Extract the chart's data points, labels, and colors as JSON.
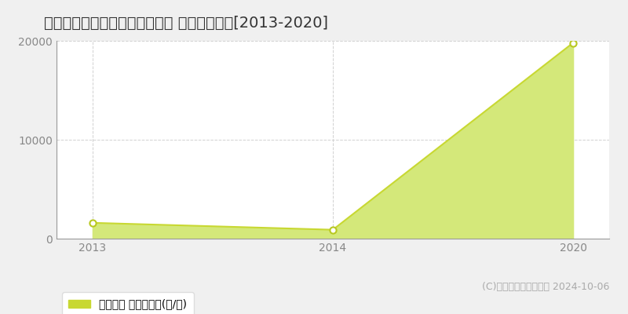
{
  "title": "河東郡士幌町ワッカクンネップ 林地価格推移[2013-2020]",
  "x_positions": [
    0,
    1,
    2
  ],
  "x_labels": [
    "2013",
    "2014",
    "2020"
  ],
  "values": [
    1600,
    900,
    19800
  ],
  "line_color": "#c8d832",
  "fill_color": "#d4e87a",
  "marker_facecolor": "#ffffff",
  "marker_edgecolor": "#b8c820",
  "ylim": [
    0,
    20000
  ],
  "xlim": [
    -0.15,
    2.15
  ],
  "yticks": [
    0,
    10000,
    20000
  ],
  "grid_color": "#cccccc",
  "bg_color": "#f0f0f0",
  "plot_bg_color": "#ffffff",
  "legend_label": "林地価格 平均坪単価(円/坪)",
  "copyright_text": "(C)土地価格ドットコム 2024-10-06",
  "title_fontsize": 14,
  "tick_fontsize": 10,
  "legend_fontsize": 10,
  "copyright_fontsize": 9
}
